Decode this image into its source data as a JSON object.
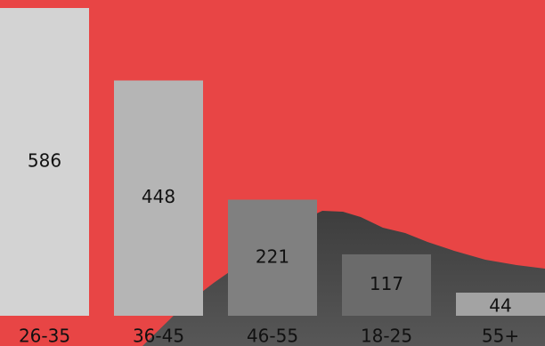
{
  "chart_data": {
    "type": "bar",
    "categories": [
      "26-35",
      "36-45",
      "46-55",
      "18-25",
      "55+"
    ],
    "values": [
      586,
      448,
      221,
      117,
      44
    ],
    "colors": [
      "#d3d3d3",
      "#b5b5b5",
      "#808080",
      "#6b6b6b",
      "#a3a3a3"
    ]
  }
}
